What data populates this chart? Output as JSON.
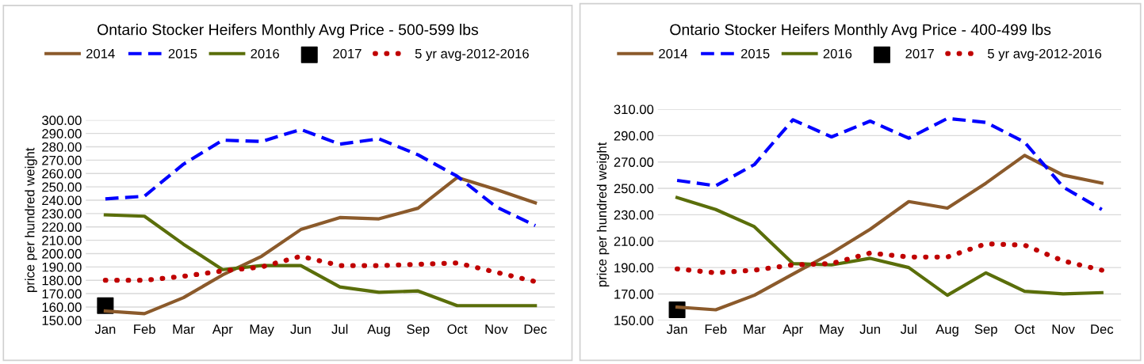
{
  "chart_data": [
    {
      "type": "line",
      "title": "Ontario Stocker Heifers Monthly Avg Price - 500-599 lbs",
      "ylabel": "price per hundred weight",
      "categories": [
        "Jan",
        "Feb",
        "Mar",
        "Apr",
        "May",
        "Jun",
        "Jul",
        "Aug",
        "Sep",
        "Oct",
        "Nov",
        "Dec"
      ],
      "ylim": [
        150,
        300
      ],
      "yticks": [
        {
          "value": 150,
          "label": "150.00"
        },
        {
          "value": 160,
          "label": "160.00"
        },
        {
          "value": 170,
          "label": "170.00"
        },
        {
          "value": 180,
          "label": "180.00"
        },
        {
          "value": 190,
          "label": "190.00"
        },
        {
          "value": 200,
          "label": "200.00"
        },
        {
          "value": 210,
          "label": "210.00"
        },
        {
          "value": 220,
          "label": "220.00"
        },
        {
          "value": 230,
          "label": "230.00"
        },
        {
          "value": 240,
          "label": "240.00"
        },
        {
          "value": 250,
          "label": "250.00"
        },
        {
          "value": 260,
          "label": "260.00"
        },
        {
          "value": 270,
          "label": "270.00"
        },
        {
          "value": 280,
          "label": "280.00"
        },
        {
          "value": 290,
          "label": "290.00"
        },
        {
          "value": 300,
          "label": "300.00"
        }
      ],
      "grid": "y",
      "legend": "top",
      "series": [
        {
          "name": "2014",
          "color": "#8b5a2b",
          "line_style": "solid",
          "values": [
            157,
            155,
            167,
            184,
            198,
            218,
            227,
            226,
            234,
            257,
            248,
            238
          ]
        },
        {
          "name": "2015",
          "color": "#0000ff",
          "line_style": "dashed",
          "values": [
            241,
            243,
            267,
            285,
            284,
            293,
            282,
            286,
            274,
            258,
            235,
            221
          ]
        },
        {
          "name": "2016",
          "color": "#5a6e0a",
          "line_style": "solid",
          "values": [
            229,
            228,
            207,
            188,
            191,
            191,
            175,
            171,
            172,
            161,
            161,
            161
          ]
        },
        {
          "name": "2017",
          "type": "scatter",
          "color": "#000000",
          "marker": "square",
          "values": [
            161,
            null,
            null,
            null,
            null,
            null,
            null,
            null,
            null,
            null,
            null,
            null
          ]
        },
        {
          "name": "5 yr avg-2012-2016",
          "color": "#c00000",
          "line_style": "dotted",
          "values": [
            180,
            180,
            183,
            187,
            190,
            198,
            191,
            191,
            192,
            193,
            186,
            179
          ]
        }
      ]
    },
    {
      "type": "line",
      "title": "Ontario Stocker Heifers Monthly Avg Price - 400-499 lbs",
      "ylabel": "price per hundred weight",
      "categories": [
        "Jan",
        "Feb",
        "Mar",
        "Apr",
        "May",
        "Jun",
        "Jul",
        "Aug",
        "Sep",
        "Oct",
        "Nov",
        "Dec"
      ],
      "ylim": [
        150,
        310
      ],
      "yticks": [
        {
          "value": 150,
          "label": "150.00"
        },
        {
          "value": 170,
          "label": "170.00"
        },
        {
          "value": 190,
          "label": "190.00"
        },
        {
          "value": 210,
          "label": "210.00"
        },
        {
          "value": 230,
          "label": "230.00"
        },
        {
          "value": 250,
          "label": "250.00"
        },
        {
          "value": 270,
          "label": "270.00"
        },
        {
          "value": 290,
          "label": "290.00"
        },
        {
          "value": 310,
          "label": "310.00"
        }
      ],
      "grid": "y",
      "legend": "top",
      "series": [
        {
          "name": "2014",
          "color": "#8b5a2b",
          "line_style": "solid",
          "values": [
            160,
            158,
            169,
            185,
            201,
            219,
            240,
            235,
            254,
            275,
            260,
            254
          ]
        },
        {
          "name": "2015",
          "color": "#0000ff",
          "line_style": "dashed",
          "values": [
            256,
            252,
            268,
            302,
            289,
            301,
            288,
            303,
            300,
            285,
            251,
            234
          ]
        },
        {
          "name": "2016",
          "color": "#5a6e0a",
          "line_style": "solid",
          "values": [
            243,
            234,
            221,
            193,
            192,
            197,
            190,
            169,
            186,
            172,
            170,
            171
          ]
        },
        {
          "name": "2017",
          "type": "scatter",
          "color": "#000000",
          "marker": "square",
          "values": [
            158,
            null,
            null,
            null,
            null,
            null,
            null,
            null,
            null,
            null,
            null,
            null
          ]
        },
        {
          "name": "5 yr avg-2012-2016",
          "color": "#c00000",
          "line_style": "dotted",
          "values": [
            189,
            186,
            188,
            192,
            193,
            201,
            198,
            198,
            208,
            207,
            195,
            188
          ]
        }
      ]
    }
  ]
}
